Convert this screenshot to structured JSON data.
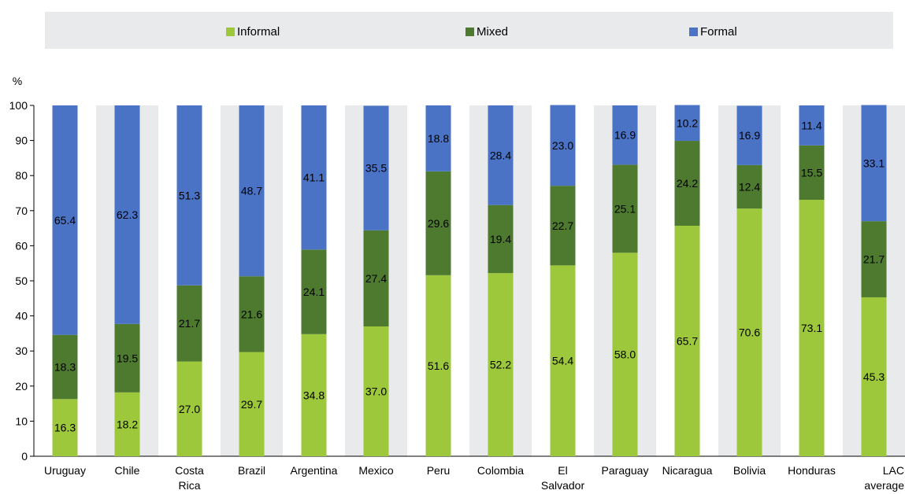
{
  "chart_data": {
    "type": "bar",
    "stacked": true,
    "ylabel": "%",
    "ylim": [
      0,
      100
    ],
    "yticks": [
      0,
      10,
      20,
      30,
      40,
      50,
      60,
      70,
      80,
      90,
      100
    ],
    "categories": [
      [
        "Uruguay"
      ],
      [
        "Chile"
      ],
      [
        "Costa",
        "Rica"
      ],
      [
        "Brazil"
      ],
      [
        "Argentina"
      ],
      [
        "Mexico"
      ],
      [
        "Peru"
      ],
      [
        "Colombia"
      ],
      [
        "El",
        "Salvador"
      ],
      [
        "Paraguay"
      ],
      [
        "Nicaragua"
      ],
      [
        "Bolivia"
      ],
      [
        "Honduras"
      ],
      [
        "LAC",
        "average"
      ]
    ],
    "series": [
      {
        "name": "Informal",
        "color": "#9dc83c",
        "values": [
          16.3,
          18.2,
          27.0,
          29.7,
          34.8,
          37.0,
          51.6,
          52.2,
          54.4,
          58.0,
          65.7,
          70.6,
          73.1,
          45.3
        ],
        "labels": [
          "16.3",
          "18.2",
          "27.0",
          "29.7",
          "34.8",
          "37.0",
          "51.6",
          "52.2",
          "54.4",
          "58.0",
          "65.7",
          "70.6",
          "73.1",
          "45.3"
        ]
      },
      {
        "name": "Mixed",
        "color": "#4e7a30",
        "values": [
          18.3,
          19.5,
          21.7,
          21.6,
          24.1,
          27.4,
          29.6,
          19.4,
          22.7,
          25.1,
          24.2,
          12.4,
          15.5,
          21.7
        ],
        "labels": [
          "18.3",
          "19.5",
          "21.7",
          "21.6",
          "24.1",
          "27.4",
          "29.6",
          "19.4",
          "22.7",
          "25.1",
          "24.2",
          "12.4",
          "15.5",
          "21.7"
        ]
      },
      {
        "name": "Formal",
        "color": "#4a73c6",
        "values": [
          65.4,
          62.3,
          51.3,
          48.7,
          41.1,
          35.5,
          18.8,
          28.4,
          23.0,
          16.9,
          10.2,
          16.9,
          11.4,
          33.1
        ],
        "labels": [
          "65.4",
          "62.3",
          "51.3",
          "48.7",
          "41.1",
          "35.5",
          "18.8",
          "28.4",
          "23.0",
          "16.9",
          "10.2",
          "16.9",
          "11.4",
          "33.1"
        ]
      }
    ],
    "legend_position": "top",
    "grid": "vertical-bands"
  }
}
